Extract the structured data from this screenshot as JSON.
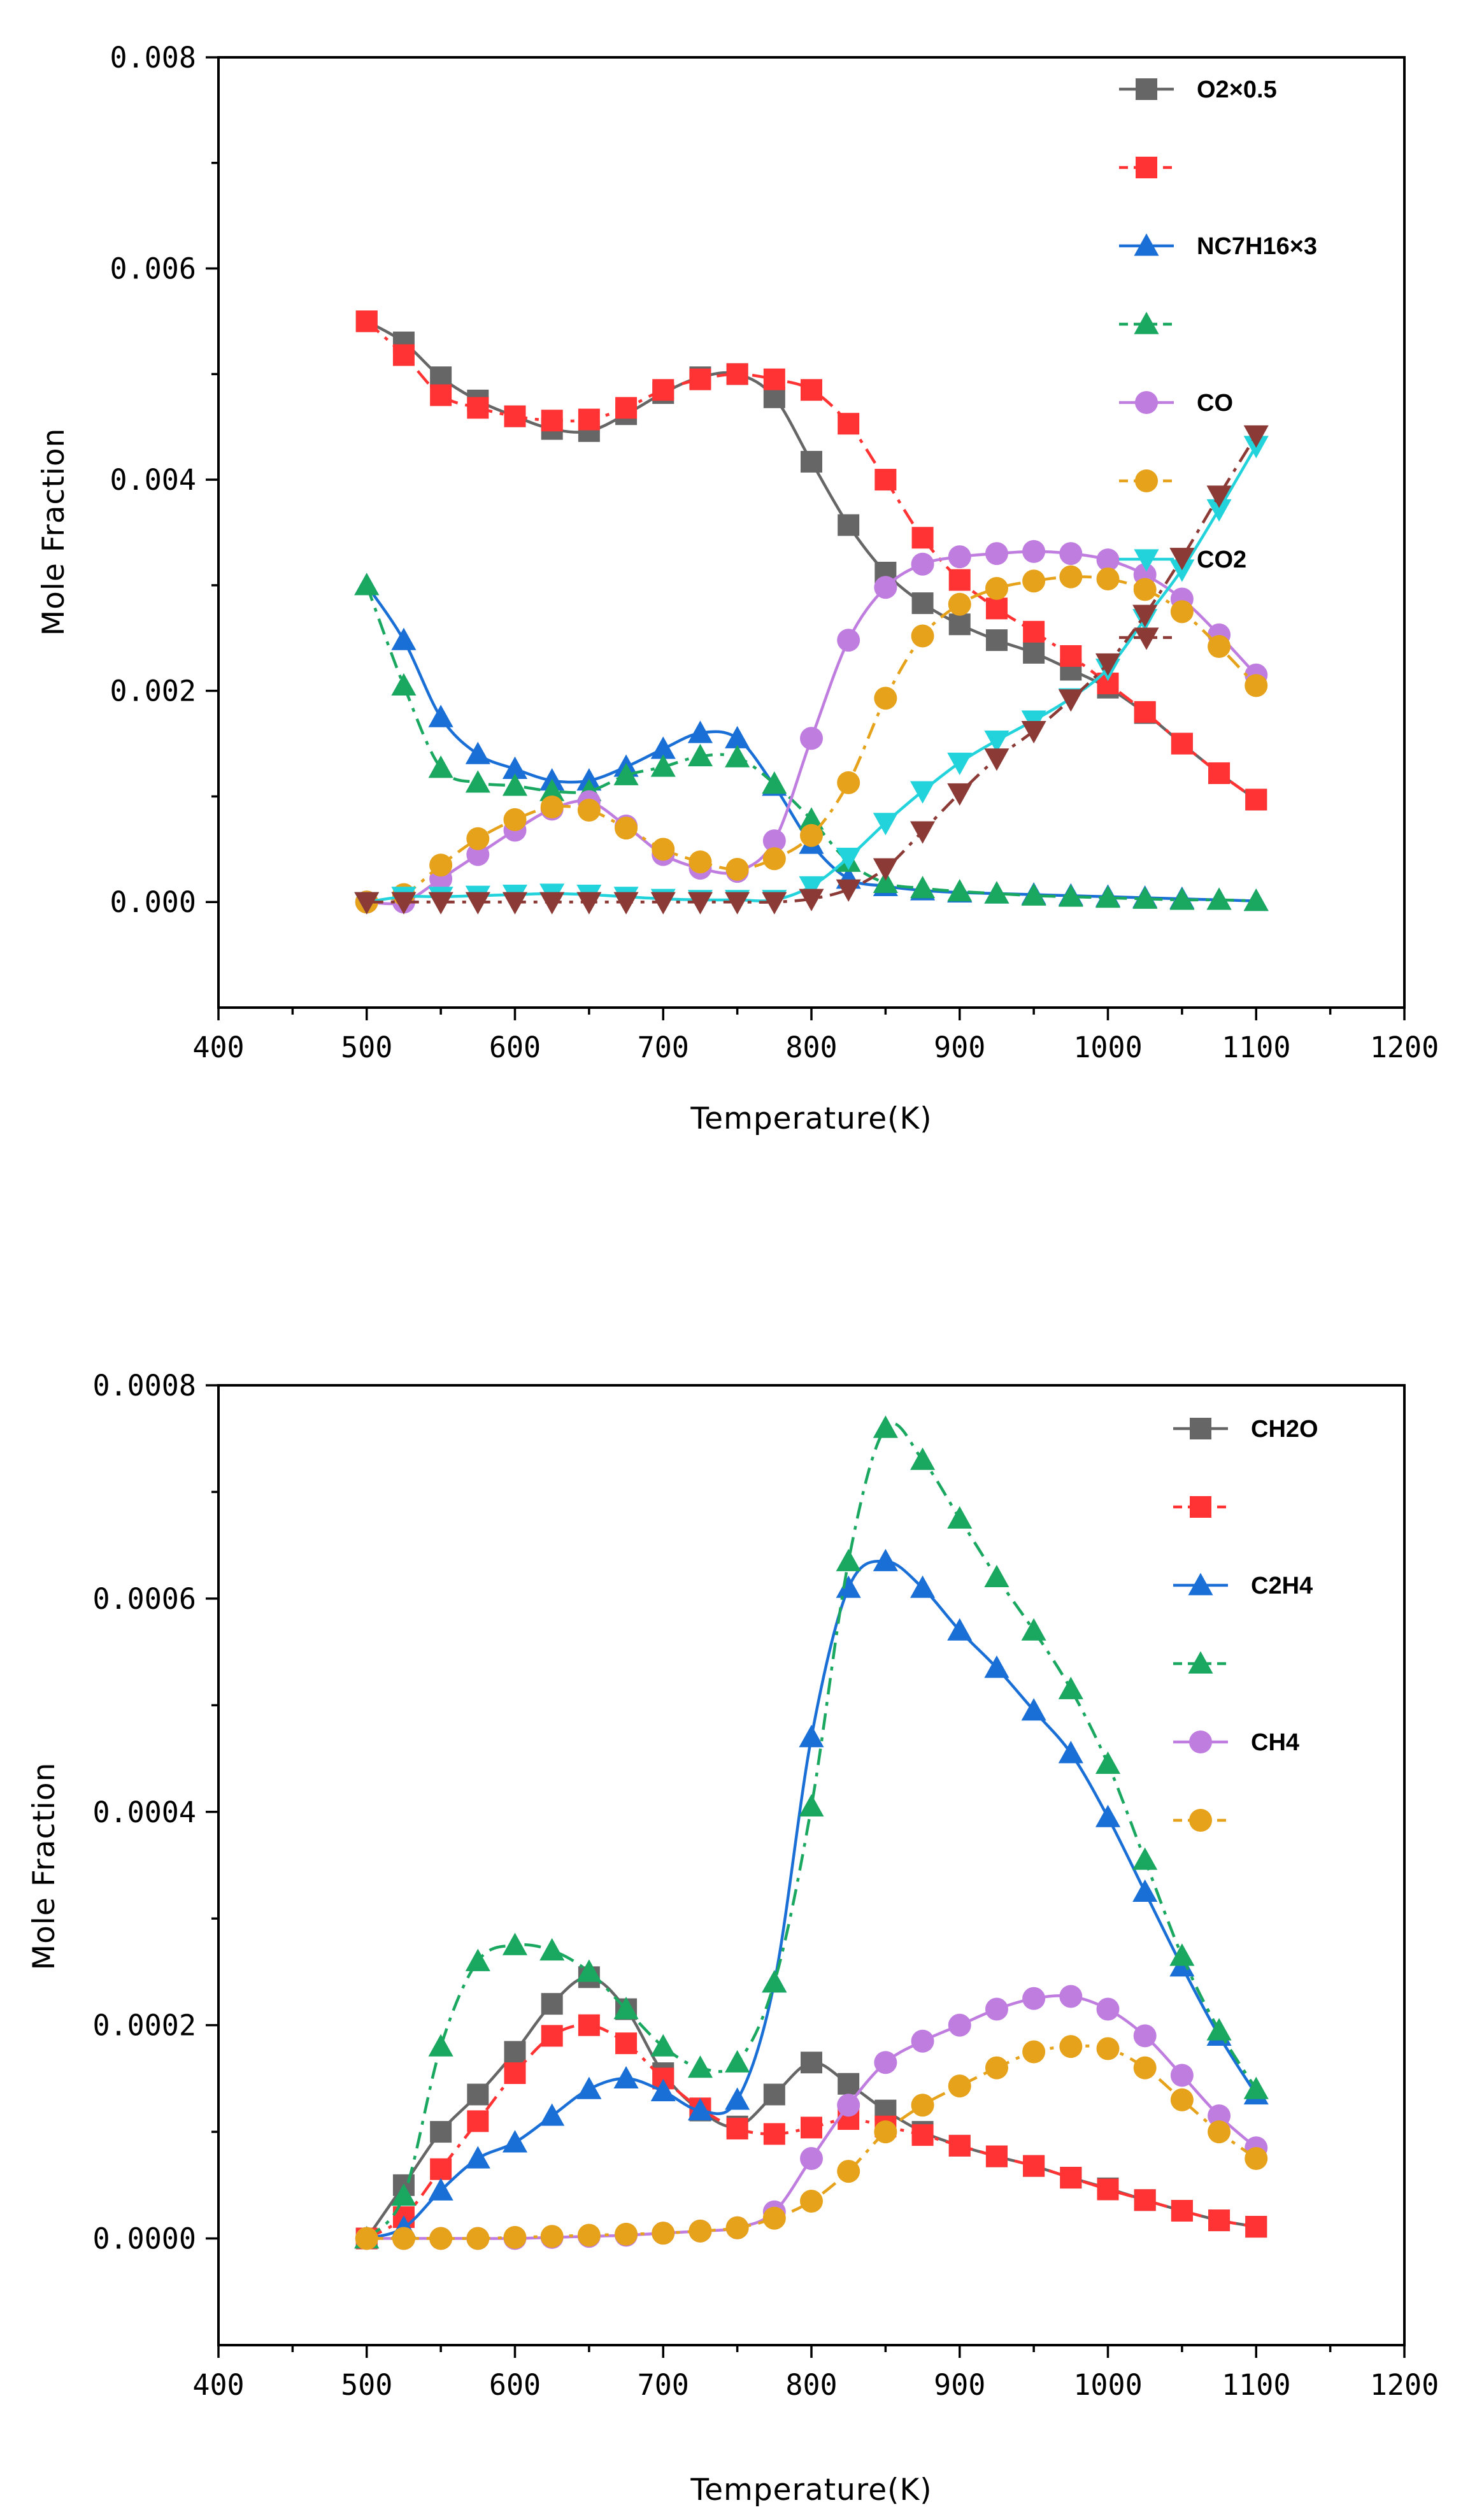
{
  "chart_data": [
    {
      "type": "line",
      "xlabel": "Temperature(K)",
      "ylabel": "Mole Fraction",
      "xlim": [
        400,
        1200
      ],
      "ylim": [
        -0.001,
        0.008
      ],
      "xticks": [
        400,
        500,
        600,
        700,
        800,
        900,
        1000,
        1100,
        1200
      ],
      "yticks": [
        0,
        0.002,
        0.004,
        0.006,
        0.008
      ],
      "xtick_labels": [
        "400",
        "500",
        "600",
        "700",
        "800",
        "900",
        "1000",
        "1100",
        "1200"
      ],
      "ytick_labels": [
        "0.000",
        "0.002",
        "0.004",
        "0.006",
        "0.008"
      ],
      "legend_position": "top-right",
      "x": [
        500,
        525,
        550,
        575,
        600,
        625,
        650,
        675,
        700,
        725,
        750,
        775,
        800,
        825,
        850,
        875,
        900,
        925,
        950,
        975,
        1000,
        1025,
        1050,
        1075,
        1100
      ],
      "series": [
        {
          "name": "O2×0.5",
          "color": "#666666",
          "marker": "square",
          "dash": "solid",
          "values": [
            0.0055,
            0.0053,
            0.00497,
            0.00475,
            0.0046,
            0.00448,
            0.00446,
            0.00462,
            0.00482,
            0.00497,
            0.005,
            0.00478,
            0.00417,
            0.00357,
            0.00312,
            0.00283,
            0.00263,
            0.00248,
            0.00236,
            0.0022,
            0.00203,
            0.00179,
            0.0015,
            0.00122,
            0.00097
          ]
        },
        {
          "name": "",
          "color": "#ff3333",
          "marker": "square",
          "dash": "dashdot",
          "values": [
            0.0055,
            0.00518,
            0.0048,
            0.00468,
            0.0046,
            0.00456,
            0.00457,
            0.00468,
            0.00485,
            0.00495,
            0.005,
            0.00495,
            0.00485,
            0.00453,
            0.004,
            0.00345,
            0.00305,
            0.00278,
            0.00256,
            0.00233,
            0.00207,
            0.0018,
            0.0015,
            0.00122,
            0.00097
          ]
        },
        {
          "name": "NC7H16×3",
          "color": "#1a6fd6",
          "marker": "triangle-up",
          "dash": "solid",
          "values": [
            0.003,
            0.00248,
            0.00175,
            0.0014,
            0.00126,
            0.00115,
            0.00115,
            0.00128,
            0.00145,
            0.0016,
            0.00155,
            0.0011,
            0.00055,
            0.00022,
            0.00015,
            0.00011,
            9e-05,
            8e-05,
            7e-05,
            6e-05,
            5e-05,
            4e-05,
            3e-05,
            2e-05,
            1e-05
          ]
        },
        {
          "name": "",
          "color": "#1aa860",
          "marker": "triangle-up",
          "dash": "dashdot",
          "values": [
            0.003,
            0.00205,
            0.00127,
            0.00113,
            0.0011,
            0.00105,
            0.00105,
            0.0012,
            0.00128,
            0.00138,
            0.00137,
            0.00112,
            0.00078,
            0.00038,
            0.00018,
            0.00013,
            0.0001,
            8e-05,
            6e-05,
            5e-05,
            4e-05,
            3e-05,
            2e-05,
            2e-05,
            1e-05
          ]
        },
        {
          "name": "CO",
          "color": "#c07de0",
          "marker": "circle",
          "dash": "solid",
          "values": [
            0.0,
            0.0,
            0.00022,
            0.00045,
            0.00068,
            0.00088,
            0.00095,
            0.00072,
            0.00045,
            0.00032,
            0.00029,
            0.00058,
            0.00155,
            0.00248,
            0.00298,
            0.0032,
            0.00327,
            0.0033,
            0.00332,
            0.0033,
            0.00324,
            0.0031,
            0.00287,
            0.00253,
            0.00215
          ]
        },
        {
          "name": "",
          "color": "#e6a21a",
          "marker": "circle",
          "dash": "dashdot",
          "values": [
            0.0,
            7e-05,
            0.00035,
            0.0006,
            0.00078,
            0.0009,
            0.00087,
            0.0007,
            0.0005,
            0.00038,
            0.00031,
            0.00041,
            0.00063,
            0.00113,
            0.00193,
            0.00252,
            0.00282,
            0.00297,
            0.00304,
            0.00308,
            0.00306,
            0.00296,
            0.00275,
            0.00242,
            0.00205
          ]
        },
        {
          "name": "CO2",
          "color": "#22d3dc",
          "marker": "triangle-down",
          "dash": "solid",
          "values": [
            0.0,
            5e-05,
            5e-05,
            6e-05,
            7e-05,
            8e-05,
            7e-05,
            5e-05,
            3e-05,
            2e-05,
            2e-05,
            2e-05,
            0.00015,
            0.00042,
            0.00075,
            0.00105,
            0.00132,
            0.00153,
            0.00172,
            0.00193,
            0.00221,
            0.00268,
            0.00315,
            0.00372,
            0.00432
          ]
        },
        {
          "name": "",
          "color": "#8b3a36",
          "marker": "triangle-down",
          "dash": "dashdot",
          "values": [
            0.0,
            0.0,
            0.0,
            0.0,
            0.0,
            0.0,
            0.0,
            0.0,
            0.0,
            0.0,
            0.0,
            0.0,
            3e-05,
            0.00012,
            0.00032,
            0.00067,
            0.00103,
            0.00136,
            0.00162,
            0.00192,
            0.00226,
            0.00272,
            0.00326,
            0.00385,
            0.00442
          ]
        }
      ]
    },
    {
      "type": "line",
      "xlabel": "Temperature(K)",
      "ylabel": "Mole Fraction",
      "xlim": [
        400,
        1200
      ],
      "ylim": [
        -0.0001,
        0.0008
      ],
      "xticks": [
        400,
        500,
        600,
        700,
        800,
        900,
        1000,
        1100,
        1200
      ],
      "yticks": [
        0,
        0.0002,
        0.0004,
        0.0006,
        0.0008
      ],
      "xtick_labels": [
        "400",
        "500",
        "600",
        "700",
        "800",
        "900",
        "1000",
        "1100",
        "1200"
      ],
      "ytick_labels": [
        "0.0000",
        "0.0002",
        "0.0004",
        "0.0006",
        "0.0008"
      ],
      "legend_position": "top-right",
      "x": [
        500,
        525,
        550,
        575,
        600,
        625,
        650,
        675,
        700,
        725,
        750,
        775,
        800,
        825,
        850,
        875,
        900,
        925,
        950,
        975,
        1000,
        1025,
        1050,
        1075,
        1100
      ],
      "series": [
        {
          "name": "CH2O",
          "color": "#666666",
          "marker": "square",
          "dash": "solid",
          "values": [
            0.0,
            5e-05,
            0.0001,
            0.000135,
            0.000175,
            0.00022,
            0.000245,
            0.000215,
            0.000155,
            0.00012,
            0.000105,
            0.000135,
            0.000165,
            0.000145,
            0.00012,
            0.0001,
            8.7e-05,
            7.7e-05,
            6.8e-05,
            5.7e-05,
            4.7e-05,
            3.6e-05,
            2.6e-05,
            1.7e-05,
            1.1e-05
          ]
        },
        {
          "name": "",
          "color": "#ff3333",
          "marker": "square",
          "dash": "dashdot",
          "values": [
            0.0,
            2e-05,
            6.5e-05,
            0.00011,
            0.000155,
            0.00019,
            0.0002,
            0.000183,
            0.00015,
            0.000122,
            0.000103,
            9.8e-05,
            0.000104,
            0.000112,
            0.000105,
            9.7e-05,
            8.7e-05,
            7.7e-05,
            6.8e-05,
            5.7e-05,
            4.6e-05,
            3.6e-05,
            2.6e-05,
            1.7e-05,
            1.1e-05
          ]
        },
        {
          "name": "C2H4",
          "color": "#1a6fd6",
          "marker": "triangle-up",
          "dash": "solid",
          "values": [
            0.0,
            1e-05,
            4.5e-05,
            7.5e-05,
            9e-05,
            0.000115,
            0.00014,
            0.00015,
            0.000138,
            0.00012,
            0.00013,
            0.00024,
            0.00047,
            0.00061,
            0.000635,
            0.00061,
            0.00057,
            0.000535,
            0.000495,
            0.000455,
            0.000395,
            0.000325,
            0.000255,
            0.00019,
            0.000135
          ]
        },
        {
          "name": "",
          "color": "#1aa860",
          "marker": "triangle-up",
          "dash": "dashdot",
          "values": [
            0.0,
            4e-05,
            0.00018,
            0.00026,
            0.000275,
            0.00027,
            0.00025,
            0.000215,
            0.00018,
            0.00016,
            0.000165,
            0.00024,
            0.000405,
            0.000635,
            0.00076,
            0.00073,
            0.000675,
            0.00062,
            0.00057,
            0.000515,
            0.000445,
            0.000355,
            0.000265,
            0.000195,
            0.00014
          ]
        },
        {
          "name": "CH4",
          "color": "#c07de0",
          "marker": "circle",
          "dash": "solid",
          "values": [
            0.0,
            0.0,
            0.0,
            0.0,
            0.0,
            1e-06,
            2e-06,
            3e-06,
            5e-06,
            7e-06,
            1e-05,
            2.5e-05,
            7.5e-05,
            0.000125,
            0.000165,
            0.000185,
            0.0002,
            0.000215,
            0.000225,
            0.000227,
            0.000215,
            0.00019,
            0.000153,
            0.000115,
            8.5e-05
          ]
        },
        {
          "name": "",
          "color": "#e6a21a",
          "marker": "circle",
          "dash": "dashdot",
          "values": [
            0.0,
            0.0,
            0.0,
            0.0,
            1e-06,
            2e-06,
            3e-06,
            4e-06,
            5e-06,
            7e-06,
            1e-05,
            1.9e-05,
            3.5e-05,
            6.3e-05,
            0.0001,
            0.000125,
            0.000143,
            0.00016,
            0.000175,
            0.00018,
            0.000178,
            0.00016,
            0.00013,
            0.0001,
            7.5e-05
          ]
        }
      ]
    }
  ]
}
